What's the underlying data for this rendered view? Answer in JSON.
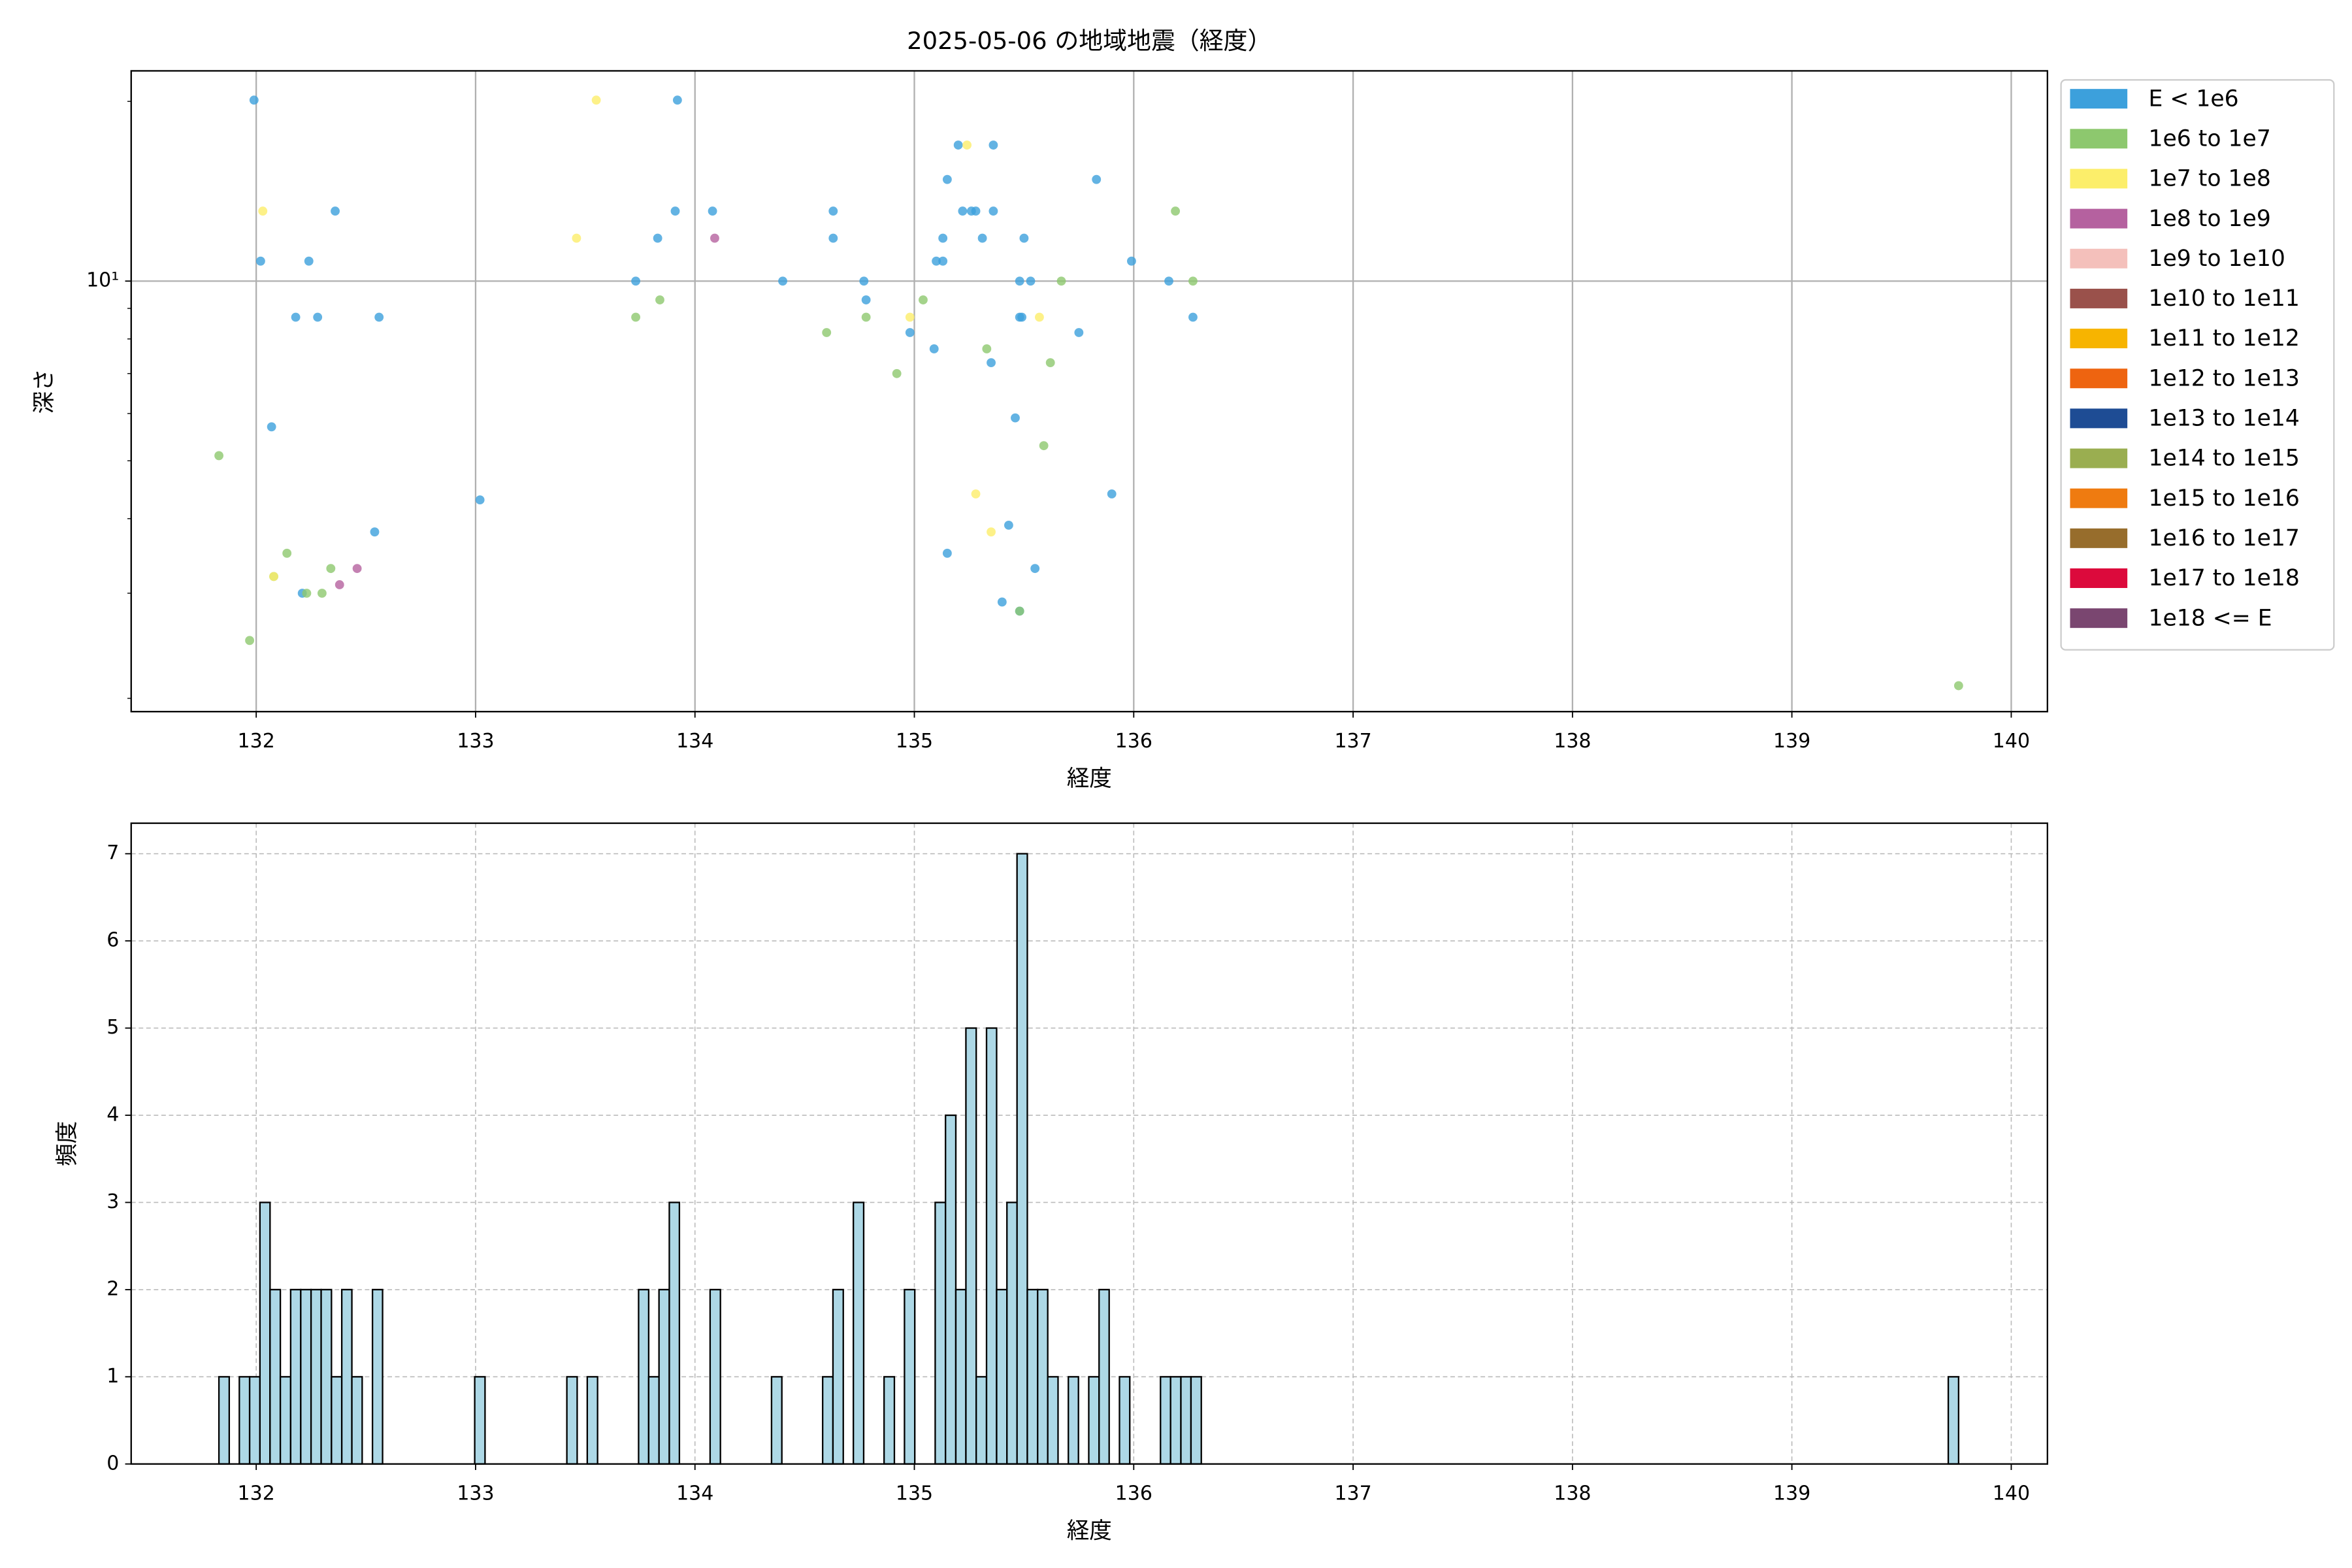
{
  "chart_data": [
    {
      "type": "scatter",
      "title": "2025-05-06 の地域地震（経度）",
      "xlabel": "経度",
      "ylabel": "深さ",
      "xlim": [
        131.43,
        140.165
      ],
      "xticks": [
        132,
        133,
        134,
        135,
        136,
        137,
        138,
        139,
        140
      ],
      "ylim": [
        1.9,
        22.5
      ],
      "yscale": "log",
      "yticks": [
        {
          "value": 10,
          "label": "10¹"
        }
      ],
      "yminorticks": [
        2,
        3,
        4,
        5,
        6,
        7,
        8,
        9,
        20
      ],
      "grid": true,
      "grid_linestyle": "solid",
      "legend": "outside-right",
      "series": [
        {
          "name": "E < 1e6",
          "color": "#3ca0dc",
          "x": [
            131.99,
            132.02,
            132.24,
            132.18,
            132.28,
            132.56,
            132.07,
            132.36,
            132.54,
            132.21,
            133.02,
            133.73,
            133.83,
            133.91,
            133.92,
            134.08,
            134.4,
            134.63,
            134.63,
            134.77,
            134.78,
            134.98,
            135.09,
            135.1,
            135.13,
            135.13,
            135.15,
            135.2,
            135.22,
            135.26,
            135.28,
            135.31,
            135.36,
            135.36,
            135.35,
            135.15,
            135.43,
            135.4,
            135.46,
            135.48,
            135.49,
            135.48,
            135.5,
            135.53,
            135.55,
            135.75,
            135.83,
            135.9,
            135.99,
            136.16,
            136.27,
            135.48
          ],
          "y": [
            20.1,
            10.8,
            10.8,
            8.7,
            8.7,
            8.7,
            5.7,
            13.1,
            3.8,
            3.0,
            4.3,
            10,
            11.8,
            13.1,
            20.1,
            13.1,
            10,
            13.1,
            11.8,
            10,
            9.3,
            8.2,
            7.7,
            10.8,
            10.8,
            11.8,
            14.8,
            16.9,
            13.1,
            13.1,
            13.1,
            11.8,
            16.9,
            13.1,
            7.3,
            3.5,
            3.9,
            2.9,
            5.9,
            8.7,
            8.7,
            10,
            11.8,
            10,
            3.3,
            8.2,
            14.8,
            4.4,
            10.8,
            10,
            8.7,
            2.8
          ]
        },
        {
          "name": "1e6 to 1e7",
          "color": "#8dc86e",
          "x": [
            131.83,
            131.97,
            132.08,
            132.14,
            132.23,
            132.3,
            132.34,
            133.73,
            133.84,
            134.6,
            134.78,
            134.92,
            135.04,
            135.33,
            135.62,
            135.59,
            135.67,
            136.19,
            136.27,
            139.76,
            135.48
          ],
          "y": [
            5.1,
            2.5,
            3.2,
            3.5,
            3.0,
            3.0,
            3.3,
            8.7,
            9.3,
            8.2,
            8.7,
            7.0,
            9.3,
            7.7,
            7.3,
            5.3,
            10,
            13.1,
            10,
            2.1,
            2.8
          ]
        },
        {
          "name": "1e7 to 1e8",
          "color": "#fcee6a",
          "x": [
            132.03,
            133.46,
            133.55,
            134.98,
            135.24,
            135.28,
            135.35,
            135.57,
            132.08
          ],
          "y": [
            13.1,
            11.8,
            20.1,
            8.7,
            16.9,
            4.4,
            3.8,
            8.7,
            3.2
          ]
        },
        {
          "name": "1e8 to 1e9",
          "color": "#b5619f",
          "x": [
            134.09,
            132.38,
            132.46
          ],
          "y": [
            11.8,
            3.1,
            3.3
          ]
        },
        {
          "name": "1e9 to 1e10",
          "color": "#f4c0bb",
          "x": [],
          "y": []
        },
        {
          "name": "1e10 to 1e11",
          "color": "#9a514b",
          "x": [],
          "y": []
        },
        {
          "name": "1e11 to 1e12",
          "color": "#f7b400",
          "x": [],
          "y": []
        },
        {
          "name": "1e12 to 1e13",
          "color": "#ee6410",
          "x": [],
          "y": []
        },
        {
          "name": "1e13 to 1e14",
          "color": "#1e4c94",
          "x": [],
          "y": []
        },
        {
          "name": "1e14 to 1e15",
          "color": "#9aae50",
          "x": [],
          "y": []
        },
        {
          "name": "1e15 to 1e16",
          "color": "#ef7b10",
          "x": [],
          "y": []
        },
        {
          "name": "1e16 to 1e17",
          "color": "#976d2c",
          "x": [],
          "y": []
        },
        {
          "name": "1e17 to 1e18",
          "color": "#dc0a3c",
          "x": [],
          "y": []
        },
        {
          "name": "1e18 <= E",
          "color": "#7a4670",
          "x": [],
          "y": []
        }
      ]
    },
    {
      "type": "histogram",
      "xlabel": "経度",
      "ylabel": "頻度",
      "xlim": [
        131.43,
        140.165
      ],
      "xticks": [
        132,
        133,
        134,
        135,
        136,
        137,
        138,
        139,
        140
      ],
      "ylim": [
        0,
        7.35
      ],
      "yticks": [
        0,
        1,
        2,
        3,
        4,
        5,
        6,
        7
      ],
      "grid": true,
      "grid_linestyle": "dashed",
      "color": "#add8e6",
      "edgecolor": "#000000",
      "bins": [
        131.83,
        131.877,
        131.923,
        131.97,
        132.017,
        132.063,
        132.11,
        132.157,
        132.203,
        132.25,
        132.296,
        132.343,
        132.39,
        132.436,
        132.483,
        132.53,
        132.576,
        132.623,
        132.67,
        132.716,
        132.763,
        132.81,
        132.856,
        132.903,
        132.95,
        132.996,
        133.043,
        133.09,
        133.136,
        133.183,
        133.229,
        133.276,
        133.323,
        133.369,
        133.416,
        133.463,
        133.509,
        133.556,
        133.603,
        133.649,
        133.696,
        133.743,
        133.789,
        133.836,
        133.883,
        133.929,
        133.976,
        134.022,
        134.069,
        134.116,
        134.162,
        134.209,
        134.256,
        134.302,
        134.349,
        134.396,
        134.442,
        134.489,
        134.536,
        134.582,
        134.629,
        134.676,
        134.722,
        134.769,
        134.815,
        134.862,
        134.909,
        134.955,
        135.002,
        135.049,
        135.095,
        135.142,
        135.189,
        135.235,
        135.282,
        135.329,
        135.375,
        135.422,
        135.468,
        135.515,
        135.562,
        135.608,
        135.655,
        135.702,
        135.748,
        135.795,
        135.842,
        135.888,
        135.935,
        135.982,
        136.028,
        136.075,
        136.122,
        136.168,
        136.215,
        136.261,
        136.308,
        136.355,
        136.401,
        136.448,
        136.495,
        136.541,
        136.588,
        136.635,
        136.681,
        136.728,
        136.774,
        136.821,
        136.868,
        136.914,
        136.961,
        137.008,
        137.054,
        137.101,
        137.148,
        137.194,
        137.241,
        137.288,
        137.334,
        137.381,
        137.428,
        137.474,
        137.521,
        137.567,
        137.614,
        137.661,
        137.707,
        137.754,
        137.801,
        137.847,
        137.894,
        137.941,
        137.987,
        138.034,
        138.081,
        138.127,
        138.174,
        138.22,
        138.267,
        138.314,
        138.36,
        138.407,
        138.454,
        138.5,
        138.547,
        138.594,
        138.64,
        138.687,
        138.734,
        138.78,
        138.827,
        138.873,
        138.92,
        138.967,
        139.013,
        139.06,
        139.107,
        139.153,
        139.2,
        139.247,
        139.293,
        139.34,
        139.387,
        139.433,
        139.48,
        139.527,
        139.573,
        139.62,
        139.666,
        139.713,
        139.76
      ],
      "values": [
        1,
        0,
        1,
        1,
        3,
        2,
        1,
        2,
        2,
        2,
        2,
        1,
        2,
        1,
        0,
        2,
        0,
        0,
        0,
        0,
        0,
        0,
        0,
        0,
        0,
        1,
        0,
        0,
        0,
        0,
        0,
        0,
        0,
        0,
        1,
        0,
        1,
        0,
        0,
        0,
        0,
        2,
        1,
        2,
        3,
        0,
        0,
        0,
        2,
        0,
        0,
        0,
        0,
        0,
        1,
        0,
        0,
        0,
        0,
        1,
        2,
        0,
        3,
        0,
        0,
        1,
        0,
        2,
        0,
        0,
        3,
        4,
        2,
        5,
        1,
        5,
        2,
        3,
        7,
        2,
        2,
        1,
        0,
        1,
        0,
        1,
        2,
        0,
        1,
        0,
        0,
        0,
        1,
        1,
        1,
        1,
        0,
        0,
        0,
        0,
        0,
        0,
        0,
        0,
        0,
        0,
        0,
        0,
        0,
        0,
        0,
        0,
        0,
        0,
        0,
        0,
        0,
        0,
        0,
        0,
        0,
        0,
        0,
        0,
        0,
        0,
        0,
        0,
        0,
        0,
        0,
        0,
        0,
        0,
        0,
        0,
        0,
        0,
        0,
        0,
        0,
        0,
        0,
        0,
        0,
        0,
        0,
        0,
        0,
        0,
        0,
        0,
        0,
        0,
        0,
        0,
        0,
        0,
        0,
        0,
        0,
        0,
        0,
        0,
        0,
        0,
        0,
        0,
        0,
        1
      ]
    }
  ]
}
